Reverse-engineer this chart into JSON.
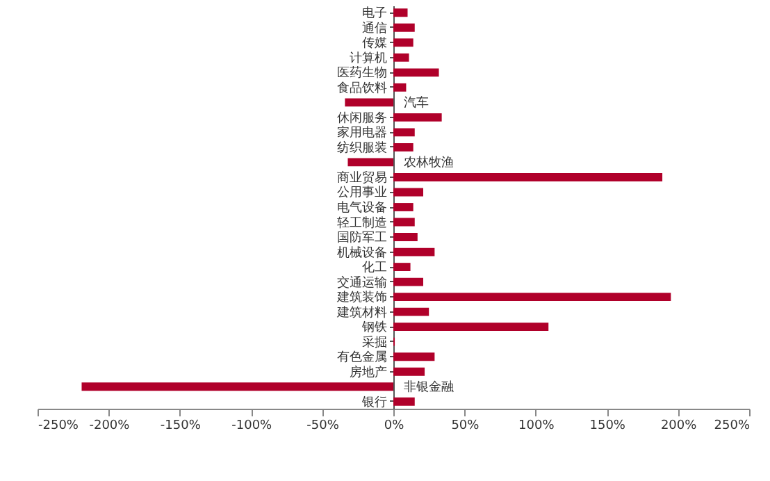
{
  "chart_data": {
    "type": "bar",
    "orientation": "horizontal",
    "categories": [
      "电子",
      "通信",
      "传媒",
      "计算机",
      "医药生物",
      "食品饮料",
      "汽车",
      "休闲服务",
      "家用电器",
      "纺织服装",
      "农林牧渔",
      "商业贸易",
      "公用事业",
      "电气设备",
      "轻工制造",
      "国防军工",
      "机械设备",
      "化工",
      "交通运输",
      "建筑装饰",
      "建筑材料",
      "钢铁",
      "采掘",
      "有色金属",
      "房地产",
      "非银金融",
      "银行"
    ],
    "values": [
      10,
      15,
      14,
      11,
      32,
      9,
      -34,
      34,
      15,
      14,
      -32,
      189,
      21,
      14,
      15,
      17,
      29,
      12,
      21,
      195,
      25,
      109,
      1,
      29,
      22,
      -219,
      15
    ],
    "color": "#b0002a",
    "xlim": [
      -250,
      250
    ],
    "xticks": [
      {
        "value": -250,
        "label": "-250%"
      },
      {
        "value": -200,
        "label": "-200%"
      },
      {
        "value": -150,
        "label": "-150%"
      },
      {
        "value": -100,
        "label": "-100%"
      },
      {
        "value": -50,
        "label": "-50%"
      },
      {
        "value": 0,
        "label": "0%"
      },
      {
        "value": 50,
        "label": "50%"
      },
      {
        "value": 100,
        "label": "100%"
      },
      {
        "value": 150,
        "label": "150%"
      },
      {
        "value": 200,
        "label": "200%"
      },
      {
        "value": 250,
        "label": "250%"
      }
    ],
    "grid": false
  }
}
